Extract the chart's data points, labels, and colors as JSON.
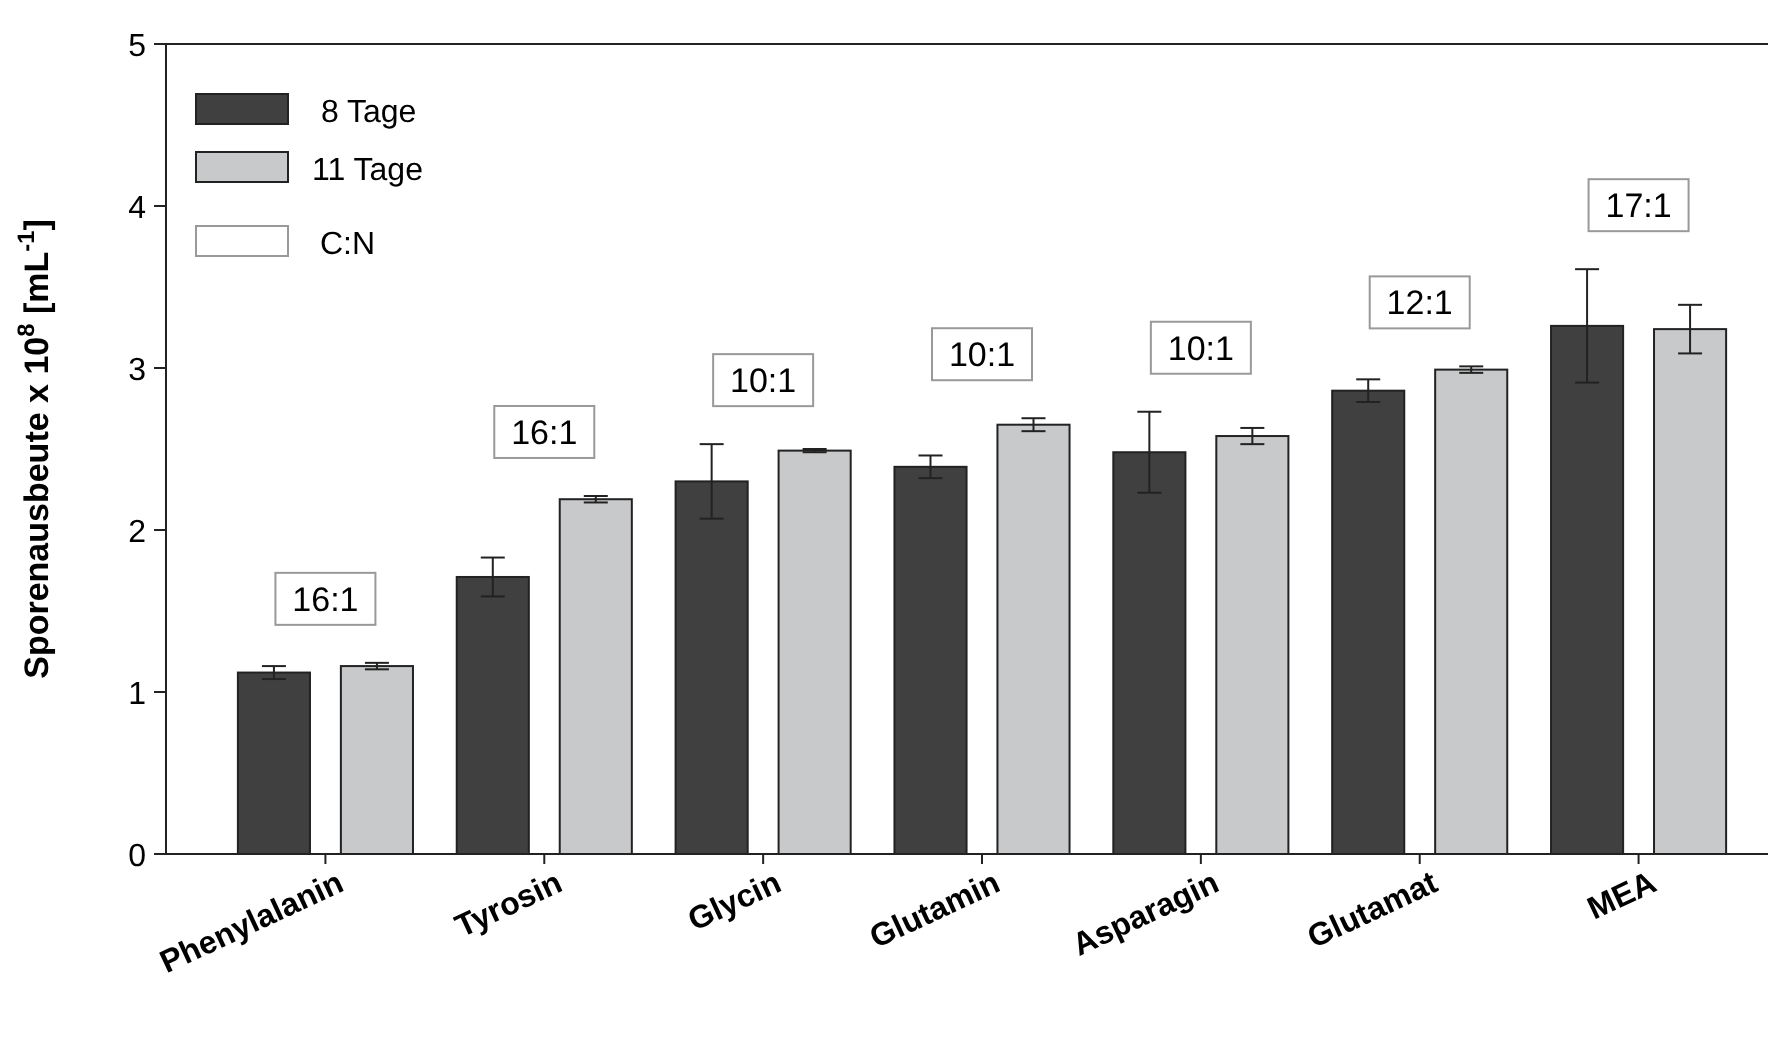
{
  "chart_data": {
    "type": "bar",
    "ylabel": "Sporenausbeute x 10$^{8}$ [mL$^{-1}$]",
    "categories": [
      "Phenylalanin",
      "Tyrosin",
      "Glycin",
      "Glutamin",
      "Asparagin",
      "Glutamat",
      "MEA"
    ],
    "series": [
      {
        "name": " 8 Tage",
        "color": "#404040",
        "values": [
          1.12,
          1.71,
          2.3,
          2.39,
          2.48,
          2.86,
          3.26
        ],
        "errors": [
          0.04,
          0.12,
          0.23,
          0.07,
          0.25,
          0.07,
          0.35
        ]
      },
      {
        "name": "11 Tage",
        "color": "#c8c9cb",
        "values": [
          1.16,
          2.19,
          2.49,
          2.65,
          2.58,
          2.99,
          3.24
        ],
        "errors": [
          0.02,
          0.02,
          0.01,
          0.04,
          0.05,
          0.02,
          0.15
        ]
      }
    ],
    "ylim": [
      0,
      5
    ],
    "yticks": [
      0,
      1,
      2,
      3,
      4,
      5
    ],
    "grid": false,
    "legend": "top left",
    "annotations": [
      "C:N",
      "16:1",
      "16:1",
      "10:1",
      "10:1",
      "10:1",
      "12:1",
      "17:1"
    ]
  }
}
